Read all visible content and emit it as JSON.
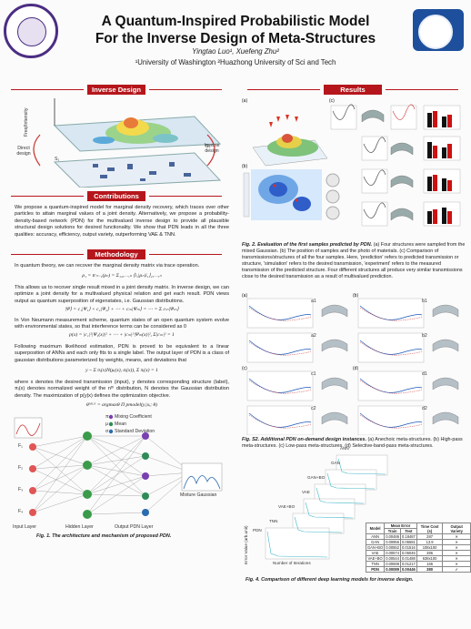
{
  "header": {
    "title_line1": "A Quantum-Inspired Probabilistic Model",
    "title_line2": "For the Inverse Design of Meta-Structures",
    "authors": "Yingtao Luo¹, Xuefeng Zhu²",
    "affiliations": "¹University of Washington ²Huazhong University of Sci and Tech"
  },
  "sections": {
    "inverse_design": "Inverse Design",
    "contributions": "Contributions",
    "methodology": "Methodology",
    "results": "Results"
  },
  "inverse_fig": {
    "freq_label": "Freq/Intensity",
    "direct_label": "Direct design",
    "inverse_label": "Inverse design",
    "s1": "S₁",
    "s2": "S₂"
  },
  "contributions_text": "We propose a quantum-inspired model for marginal density recovery, which traces over other particles to attain marginal values of a joint density. Alternatively, we propose a probability-density-based network (PDN) for the multivalued inverse design to provide all plausible structural design solutions for desired functionality. We show that PDN leads in all the three qualities: accuracy, efficiency, output variety, outperforming VAE & TNN.",
  "methodology": {
    "p1": "In quantum theory, we can recover the marginal density matrix via trace operation.",
    "eq1": "ρ₁ = trₙ₋₁(ρₙ) = Σ₁₂,…,ₙ ⟨i₁|ρₙ|i₁⟩₂,…,ₙ",
    "p2": "This allows us to recover single result mixed in a joint density matrix. In inverse design, we can optimize a joint density for a multivalued physical relation and get each result. PDN views output as quantum superposition of eigenstates, i.e. Gaussian distributions.",
    "eq2": "|Ψ⟩ = c₁|Ψ₁⟩ + c₂|Ψ₂⟩ + ⋯ + cₘ|Ψₘ⟩ = ⋯ = Σ cₘ|Ψₘ⟩",
    "p3": "In Von Neumann measurement scheme, quantum states of an open quantum system evolve with environmental states, so that interference terms can be considered as 0",
    "eq3": "p(x) = |c₁|²|Ψ₁(x)|² + ⋯ + |cₘ|²|Ψₘ(x)|²,   Σ|cₘ|² = 1",
    "p4": "Following maximum likelihood estimation, PDN is proved to be equivalent to a linear superposition of ANNs and each only fits to a single label. The output layer of PDN is a class of gaussian distributions parameterized by weights, means, and deviations that",
    "eq4": "y ~ Σ πᵢ(x)N(μᵢ(x), σᵢ(x)),   Σ πᵢ(x) = 1",
    "p5": "where x denotes the desired transmission (input), y denotes corresponding structure (label), πᵢ(x) denotes normalized weight of the nᵗʰ distribution, N denotes the Gaussian distribution density. The maximization of p(y|x) defines the optimization objective.",
    "eq5": "θᴹᴸᴱ = argmaxθ Π pmodel(yᵢ|xᵢ; θ)"
  },
  "network_fig": {
    "legend_pi": "Mixing Coefficient",
    "legend_mu": "Mean",
    "legend_sigma": "Standard Deviation",
    "input_layer": "Input Layer",
    "hidden_layer": "Hidden Layer",
    "output_layer": "Output PDN Layer",
    "mixture": "Mixture Gaussian",
    "pi_sym": "π",
    "mu_sym": "μ",
    "sigma_sym": "σ",
    "f_labels": [
      "F₁",
      "F₂",
      "F₃",
      "F₄"
    ],
    "caption_bold": "Fig. 1. The architecture and mechanism of proposed PDN."
  },
  "fig2": {
    "caption_bold": "Fig. 2. Evaluation of the first samples predicted by PDN.",
    "caption_text": "(a) Four structures were sampled from the mixed Gaussian. (b) The position of samples and the photo of materials. (c) Comparison of transmissions/structures of all the four samples. Here, 'prediction' refers to predicted transmission or structure, 'simulation' refers to the desired transmission, 'experiment' refers to the measured transmission of the predicted structure. Four different structures all produce very similar transmissions close to the desired transmission as a result of multivalued prediction.",
    "panel_a": "(a)",
    "panel_b": "(b)",
    "panel_c": "(c)"
  },
  "figs2": {
    "caption_bold": "Fig. S2. Additional PDN on-demand design instances.",
    "caption_text": "(a) Anechoic meta-structures. (b) High-pass meta-structures. (c) Low-pass meta-structures. (d) Selective-band-pass meta-structures.",
    "panels": [
      "(a)",
      "(b)",
      "(c)",
      "(d)"
    ],
    "labels": [
      "a1",
      "a2",
      "b1",
      "b2",
      "c1",
      "c2",
      "d1",
      "d2"
    ]
  },
  "fig4": {
    "caption_bold": "Fig. 4. Comparison of different deep learning models for inverse design.",
    "models": [
      "ANN",
      "GAN",
      "GAN+BO",
      "VAE",
      "VAE+BO",
      "TNN",
      "PDN"
    ],
    "ylabel": "Error Value (arb.unit)",
    "xlabel": "Number of Iterations",
    "table": {
      "headers": [
        "Model",
        "Mean Error",
        "Time Cost (s)",
        "Output Variety"
      ],
      "subheaders": [
        "Train",
        "Test"
      ],
      "rows": [
        [
          "ANN",
          "0.00486",
          "0.18487",
          "287",
          "✕"
        ],
        [
          "GAN",
          "0.00956",
          "0.05581",
          "13.9",
          "✕"
        ],
        [
          "GAN+BO",
          "0.00552",
          "0.01516",
          "108x100",
          "✕"
        ],
        [
          "VAE",
          "0.00574",
          "0.06046",
          "386",
          "✕"
        ],
        [
          "VAE+BO",
          "0.00544",
          "0.01488",
          "638x100",
          "✕"
        ],
        [
          "TNN",
          "0.00699",
          "0.01217",
          "166",
          "✕"
        ],
        [
          "PDN",
          "0.00089",
          "0.00446",
          "380",
          "✓"
        ]
      ]
    }
  },
  "colors": {
    "header_red": "#b5161c",
    "uw_purple": "#4b2e83",
    "hust_blue": "#1d4f9c"
  }
}
